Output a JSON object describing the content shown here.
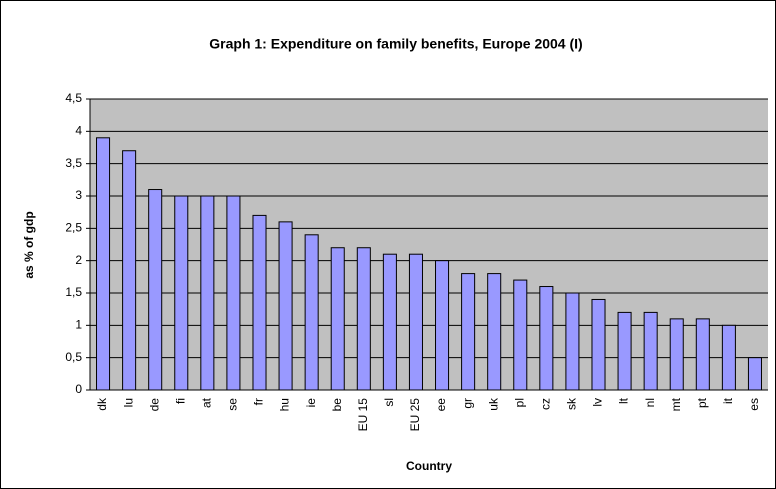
{
  "chart_data": {
    "type": "bar",
    "title": "Graph 1: Expenditure on family benefits, Europe 2004 (I)",
    "x_label": "Country",
    "y_label": "as % of gdp",
    "categories": [
      "dk",
      "lu",
      "de",
      "fi",
      "at",
      "se",
      "fr",
      "hu",
      "ie",
      "be",
      "EU 15",
      "sl",
      "EU 25",
      "ee",
      "gr",
      "uk",
      "pl",
      "cz",
      "sk",
      "lv",
      "lt",
      "nl",
      "mt",
      "pt",
      "it",
      "es"
    ],
    "values": [
      3.9,
      3.7,
      3.1,
      3.0,
      3.0,
      3.0,
      2.7,
      2.6,
      2.4,
      2.2,
      2.2,
      2.1,
      2.1,
      2.0,
      1.8,
      1.8,
      1.7,
      1.6,
      1.5,
      1.4,
      1.2,
      1.2,
      1.1,
      1.1,
      1.0,
      0.5
    ],
    "color": "#9999ff",
    "ylim": [
      0,
      4.5
    ],
    "yticks": [
      0,
      {
        "value": 0.5,
        "label": "0,5"
      },
      1,
      {
        "value": 1.5,
        "label": "1,5"
      },
      2,
      {
        "value": 2.5,
        "label": "2,5"
      },
      3,
      {
        "value": 3.5,
        "label": "3,5"
      },
      4,
      {
        "value": 4.5,
        "label": "4,5"
      }
    ],
    "grid": true
  }
}
